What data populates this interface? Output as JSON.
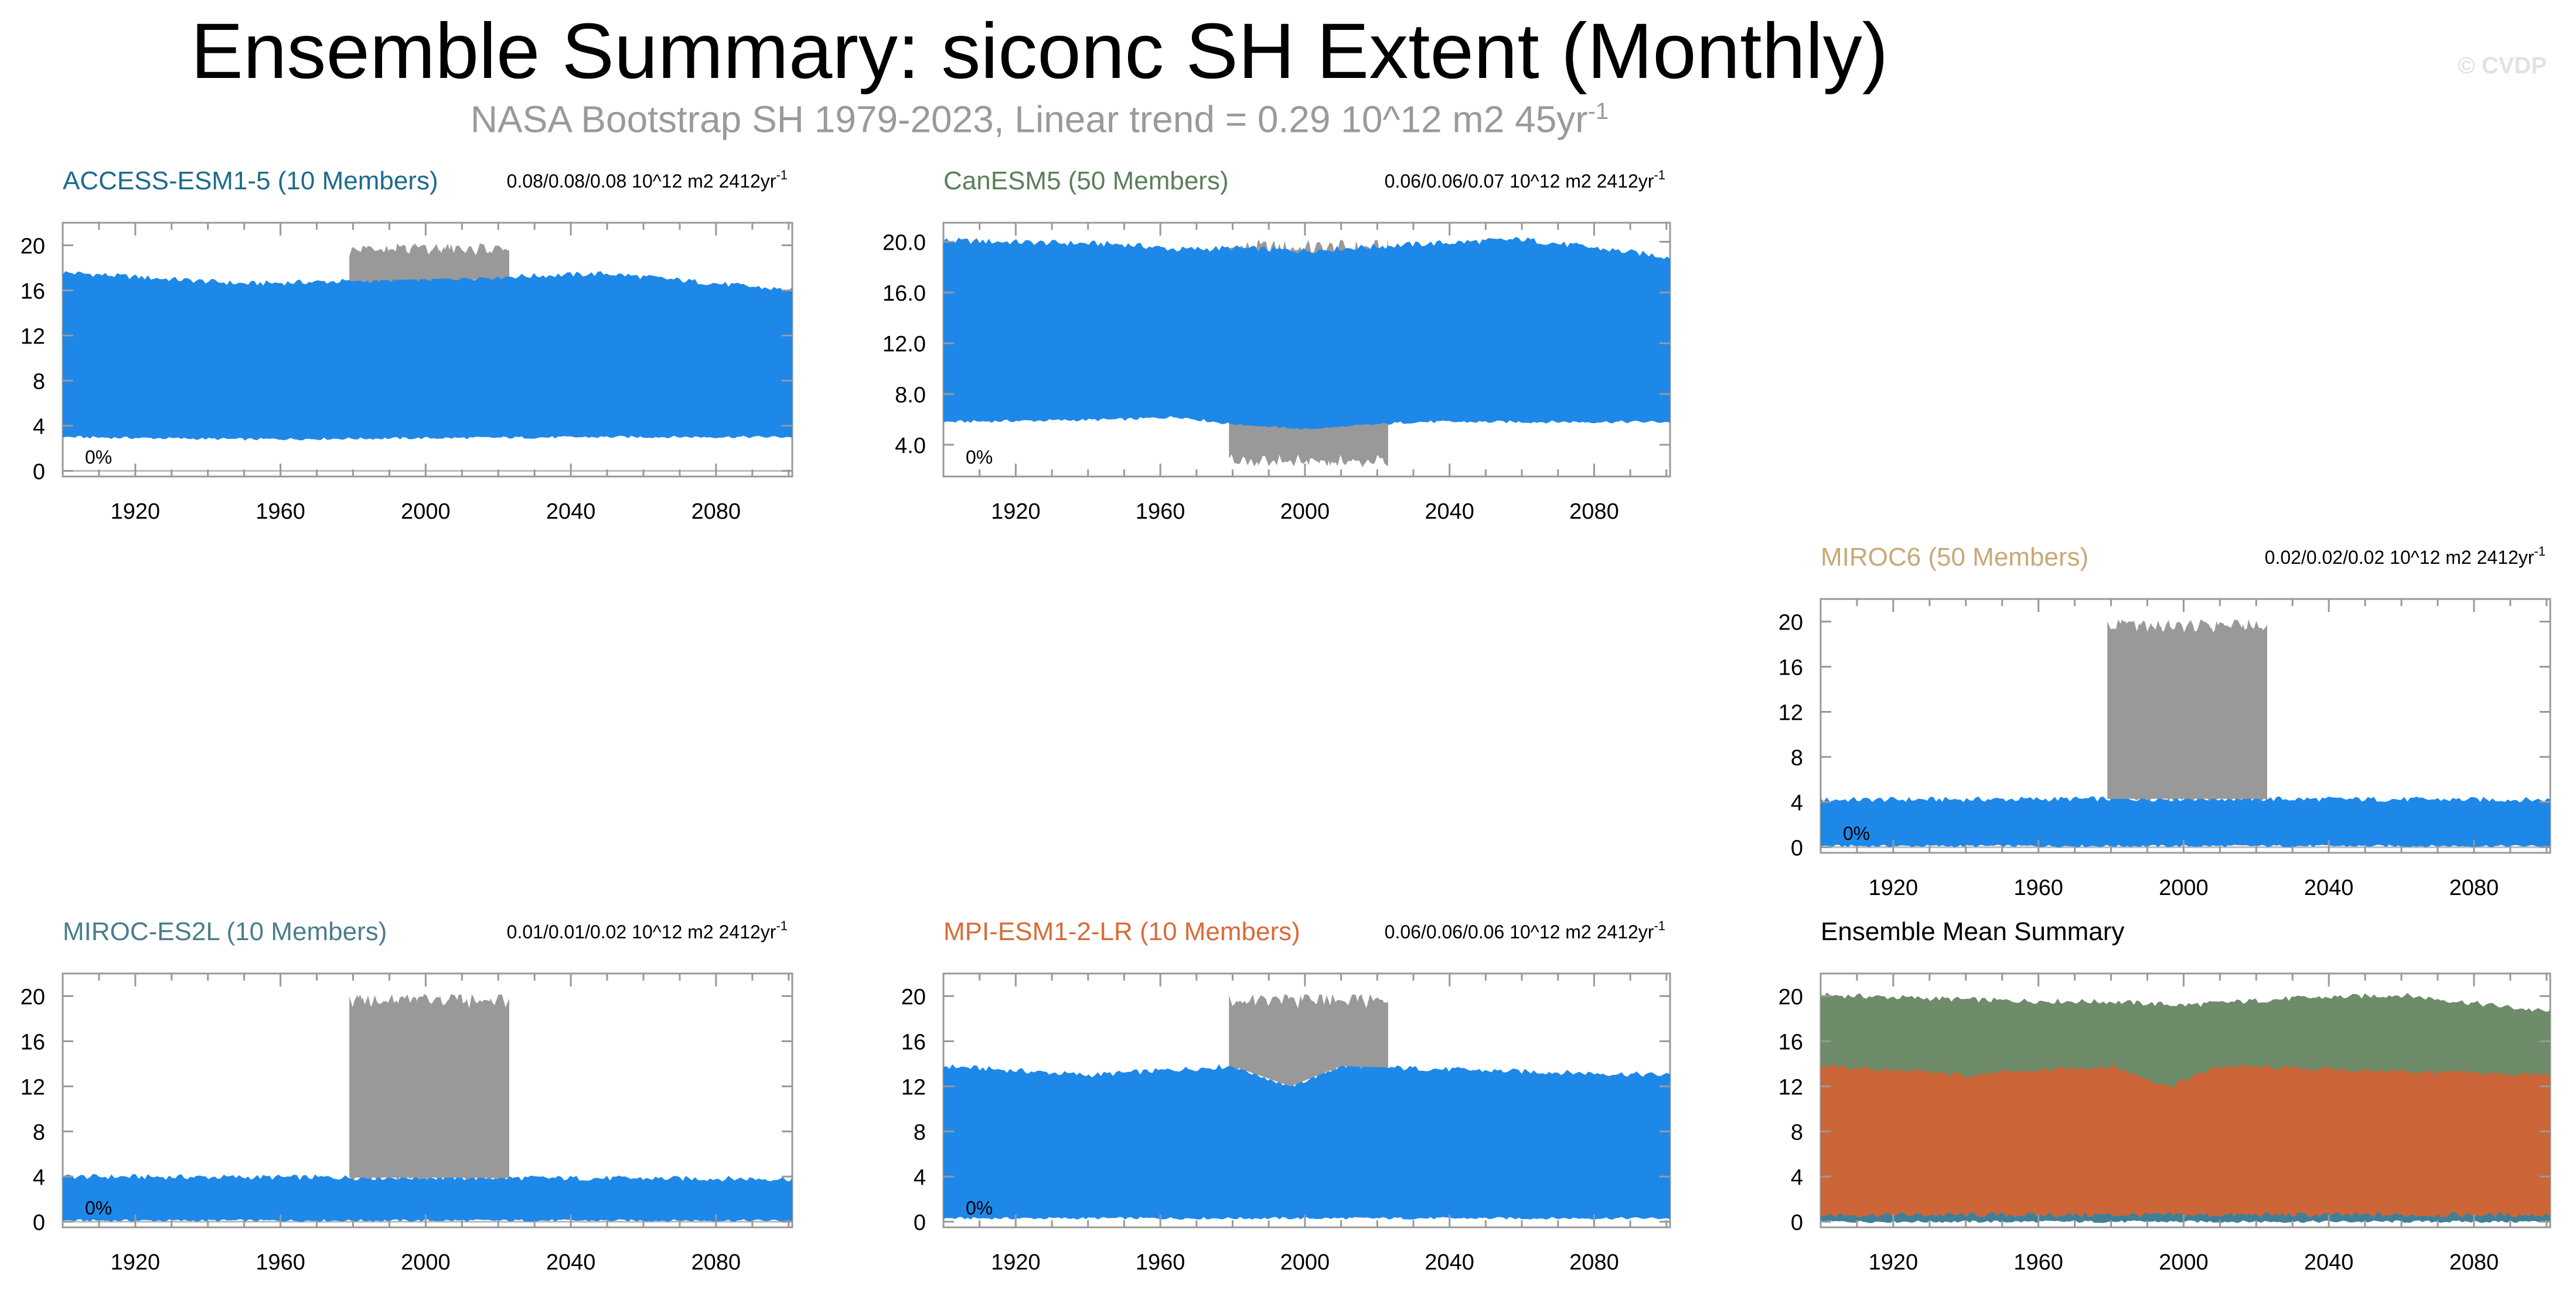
{
  "page": {
    "title": "Ensemble Summary: siconc SH Extent (Monthly)",
    "subtitle_main": "NASA Bootstrap SH 1979-2023, Linear trend = 0.29 10^12 m2 45yr",
    "subtitle_sup": "-1",
    "watermark": "© CVDP"
  },
  "colors": {
    "ensemble_spread": "#1e88e8",
    "observations": "#999999",
    "title_text": "#000000",
    "subtitle_text": "#999999"
  },
  "chart_data": [
    {
      "id": "access",
      "type": "area",
      "title": "ACCESS-ESM1-5 (10 Members)",
      "title_color": "#1d6b8c",
      "trend_text": "0.08/0.08/0.08 10^12 m2 2412yr",
      "trend_sup": "-1",
      "corner_label": "0%",
      "x_range": [
        1900,
        2101
      ],
      "xticks": [
        1920,
        1960,
        2000,
        2040,
        2080
      ],
      "ylim": [
        -0.5,
        22
      ],
      "yticks": [
        0,
        4,
        8,
        12,
        16,
        20
      ],
      "ytick_labels": [
        "0",
        "4",
        "8",
        "12",
        "16",
        "20"
      ],
      "zero_line": true,
      "obs": {
        "x": [
          1979,
          2023
        ],
        "min": 16.5,
        "max": 19.5
      },
      "series": [
        {
          "kind": "band",
          "color": "#1e88e8",
          "x": [
            1900,
            1950,
            2000,
            2050,
            2101
          ],
          "min": [
            3.0,
            2.8,
            2.9,
            3.0,
            3.0
          ],
          "max": [
            17.6,
            16.6,
            17.0,
            17.5,
            16.0
          ]
        }
      ]
    },
    {
      "id": "canesm",
      "type": "area",
      "title": "CanESM5 (50 Members)",
      "title_color": "#5b7f5b",
      "trend_text": "0.06/0.06/0.07 10^12 m2 2412yr",
      "trend_sup": "-1",
      "corner_label": "0%",
      "x_range": [
        1900,
        2101
      ],
      "xticks": [
        1920,
        1960,
        2000,
        2040,
        2080
      ],
      "ylim": [
        1.5,
        21.5
      ],
      "yticks": [
        4,
        8,
        12,
        16,
        20
      ],
      "ytick_labels": [
        "4.0",
        "8.0",
        "12.0",
        "16.0",
        "20.0"
      ],
      "zero_line": false,
      "obs": {
        "x": [
          1979,
          2023
        ],
        "min": 2.8,
        "max": 19.5
      },
      "series": [
        {
          "kind": "band",
          "color": "#1e88e8",
          "x": [
            1900,
            1950,
            1965,
            1980,
            2000,
            2030,
            2060,
            2101
          ],
          "min": [
            5.8,
            6.0,
            6.2,
            5.6,
            5.2,
            5.8,
            5.8,
            5.8
          ],
          "max": [
            20.1,
            19.8,
            19.4,
            19.5,
            19.3,
            19.8,
            20.2,
            18.8
          ]
        }
      ]
    },
    {
      "id": "miroc6",
      "type": "area",
      "title": "MIROC6 (50 Members)",
      "title_color": "#c9a878",
      "trend_text": "0.02/0.02/0.02 10^12 m2 2412yr",
      "trend_sup": "-1",
      "corner_label": "0%",
      "x_range": [
        1900,
        2101
      ],
      "xticks": [
        1920,
        1960,
        2000,
        2040,
        2080
      ],
      "ylim": [
        -0.5,
        22
      ],
      "yticks": [
        0,
        4,
        8,
        12,
        16,
        20
      ],
      "ytick_labels": [
        "0",
        "4",
        "8",
        "12",
        "16",
        "20"
      ],
      "zero_line": true,
      "obs": {
        "x": [
          1979,
          2023
        ],
        "min": 4.3,
        "max": 19.5
      },
      "series": [
        {
          "kind": "band",
          "color": "#1e88e8",
          "x": [
            1900,
            2000,
            2101
          ],
          "min": [
            0.1,
            0.1,
            0.1
          ],
          "max": [
            4.2,
            4.3,
            4.2
          ]
        }
      ]
    },
    {
      "id": "mirocl",
      "type": "area",
      "title": "MIROC-ES2L (10 Members)",
      "title_color": "#4a7d8c",
      "trend_text": "0.01/0.01/0.02 10^12 m2 2412yr",
      "trend_sup": "-1",
      "corner_label": "0%",
      "x_range": [
        1900,
        2101
      ],
      "xticks": [
        1920,
        1960,
        2000,
        2040,
        2080
      ],
      "ylim": [
        -0.5,
        22
      ],
      "yticks": [
        0,
        4,
        8,
        12,
        16,
        20
      ],
      "ytick_labels": [
        "0",
        "4",
        "8",
        "12",
        "16",
        "20"
      ],
      "zero_line": true,
      "obs": {
        "x": [
          1979,
          2023
        ],
        "min": 3.9,
        "max": 19.5
      },
      "series": [
        {
          "kind": "band",
          "color": "#1e88e8",
          "x": [
            1900,
            2000,
            2101
          ],
          "min": [
            0.1,
            0.1,
            0.1
          ],
          "max": [
            4.0,
            3.9,
            3.8
          ]
        }
      ]
    },
    {
      "id": "mpi",
      "type": "area",
      "title": "MPI-ESM1-2-LR (10 Members)",
      "title_color": "#d96b36",
      "trend_text": "0.06/0.06/0.06 10^12 m2 2412yr",
      "trend_sup": "-1",
      "corner_label": "0%",
      "x_range": [
        1900,
        2101
      ],
      "xticks": [
        1920,
        1960,
        2000,
        2040,
        2080
      ],
      "ylim": [
        -0.5,
        22
      ],
      "yticks": [
        0,
        4,
        8,
        12,
        16,
        20
      ],
      "ytick_labels": [
        "0",
        "4",
        "8",
        "12",
        "16",
        "20"
      ],
      "zero_line": false,
      "obs": {
        "x": [
          1979,
          2023
        ],
        "min": 13.5,
        "max": 19.5
      },
      "series": [
        {
          "kind": "band",
          "color": "#1e88e8",
          "x": [
            1900,
            1940,
            1980,
            1996,
            2010,
            2050,
            2101
          ],
          "min": [
            0.3,
            0.3,
            0.3,
            0.3,
            0.3,
            0.3,
            0.3
          ],
          "max": [
            13.8,
            13.0,
            13.8,
            12.0,
            13.8,
            13.4,
            13.0
          ]
        }
      ]
    },
    {
      "id": "mean",
      "type": "area",
      "title": "Ensemble Mean Summary",
      "title_color": "#000000",
      "trend_text": "",
      "trend_sup": "",
      "corner_label": "",
      "x_range": [
        1900,
        2101
      ],
      "xticks": [
        1920,
        1960,
        2000,
        2040,
        2080
      ],
      "ylim": [
        -0.5,
        22
      ],
      "yticks": [
        0,
        4,
        8,
        12,
        16,
        20
      ],
      "ytick_labels": [
        "0",
        "4",
        "8",
        "12",
        "16",
        "20"
      ],
      "zero_line": false,
      "obs": null,
      "series": [
        {
          "kind": "band",
          "color": "#6e8b6a",
          "x": [
            1900,
            1950,
            1980,
            2000,
            2030,
            2060,
            2101
          ],
          "min": [
            0.3,
            0.3,
            0.3,
            0.3,
            0.3,
            0.3,
            0.3
          ],
          "max": [
            20.1,
            19.6,
            19.5,
            19.2,
            19.8,
            20.1,
            18.6
          ]
        },
        {
          "kind": "band",
          "color": "#cc6638",
          "x": [
            1900,
            1940,
            1980,
            1996,
            2010,
            2050,
            2101
          ],
          "min": [
            0.3,
            0.3,
            0.3,
            0.3,
            0.3,
            0.3,
            0.3
          ],
          "max": [
            13.8,
            13.0,
            13.8,
            12.0,
            13.8,
            13.4,
            13.0
          ]
        },
        {
          "kind": "band",
          "color": "#3f8098",
          "x": [
            1900,
            2000,
            2101
          ],
          "min": [
            0.0,
            0.0,
            0.0
          ],
          "max": [
            0.6,
            0.6,
            0.6
          ]
        }
      ]
    }
  ]
}
